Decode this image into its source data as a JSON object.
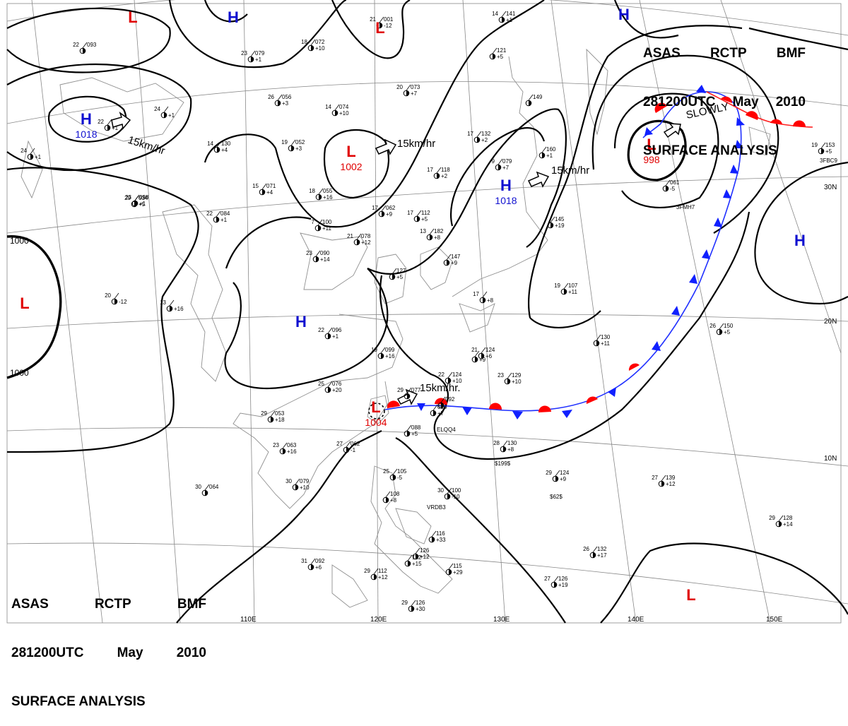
{
  "header": {
    "line1": [
      "ASAS",
      "RCTP",
      "BMF"
    ],
    "line2": [
      "281200UTC",
      "May",
      "2010"
    ],
    "line3": "SURFACE ANALYSIS"
  },
  "colors": {
    "high": "#1010d0",
    "low": "#e00000",
    "isobar": "#000000",
    "grid": "#888888",
    "coast": "#909090",
    "cold_front": "#0000ff",
    "warm_front": "#ff0000"
  },
  "grid_labels": {
    "lon": [
      "110E",
      "120E",
      "130E",
      "140E",
      "150E"
    ],
    "lat": [
      "30N",
      "20N",
      "10N"
    ]
  },
  "isobar_labels": [
    "1000",
    "1000"
  ],
  "pressure_centers": [
    {
      "type": "H",
      "value": "1018"
    },
    {
      "type": "H",
      "value": ""
    },
    {
      "type": "H",
      "value": ""
    },
    {
      "type": "H",
      "value": "1018"
    },
    {
      "type": "H",
      "value": ""
    },
    {
      "type": "H",
      "value": ""
    },
    {
      "type": "L",
      "value": "1002"
    },
    {
      "type": "L",
      "value": "998"
    },
    {
      "type": "L",
      "value": "1004"
    },
    {
      "type": "L",
      "value": ""
    },
    {
      "type": "L",
      "value": ""
    },
    {
      "type": "L",
      "value": ""
    },
    {
      "type": "L",
      "value": ""
    }
  ],
  "motion_labels": [
    "15km/hr",
    "15km/hr",
    "15km/hr",
    "15km/hr.",
    "SLOWLY"
  ],
  "stations": [
    {
      "t": "22",
      "p": "093",
      "d": ""
    },
    {
      "t": "24",
      "p": "",
      "d": "+1"
    },
    {
      "t": "23",
      "p": "079",
      "d": "+1"
    },
    {
      "t": "18",
      "p": "072",
      "d": "+10"
    },
    {
      "t": "21",
      "p": "001",
      "d": "-12"
    },
    {
      "t": "14",
      "p": "141",
      "d": "+1"
    },
    {
      "t": "26",
      "p": "056",
      "d": "+3"
    },
    {
      "t": "14",
      "p": "074",
      "d": "+10"
    },
    {
      "t": "20",
      "p": "073",
      "d": "+7"
    },
    {
      "t": "",
      "p": "121",
      "d": "+5"
    },
    {
      "t": "22",
      "p": "",
      "d": "+1"
    },
    {
      "t": "24",
      "p": "",
      "d": "+1"
    },
    {
      "t": "14",
      "p": "130",
      "d": "+4"
    },
    {
      "t": "19",
      "p": "052",
      "d": "+3"
    },
    {
      "t": "17",
      "p": "132",
      "d": "+2"
    },
    {
      "t": "",
      "p": "149",
      "d": ""
    },
    {
      "t": "23",
      "p": "098",
      "d": "+1"
    },
    {
      "t": "15",
      "p": "071",
      "d": "+4"
    },
    {
      "t": "18",
      "p": "055",
      "d": "+16"
    },
    {
      "t": "17",
      "p": "118",
      "d": "+2"
    },
    {
      "t": "9",
      "p": "079",
      "d": "+7"
    },
    {
      "t": "",
      "p": "160",
      "d": "+1"
    },
    {
      "t": "19",
      "p": "153",
      "d": "+5"
    },
    {
      "t": "29",
      "p": "034",
      "d": "+5"
    },
    {
      "t": "22",
      "p": "084",
      "d": "+1"
    },
    {
      "t": "17",
      "p": "062",
      "d": "+9"
    },
    {
      "t": "17",
      "p": "112",
      "d": "+5"
    },
    {
      "t": "",
      "p": "061",
      "d": "-5"
    },
    {
      "t": "7",
      "p": "100",
      "d": "+11"
    },
    {
      "t": "21",
      "p": "078",
      "d": "+12"
    },
    {
      "t": "13",
      "p": "182",
      "d": "+8"
    },
    {
      "t": "",
      "p": "145",
      "d": "+19"
    },
    {
      "t": "23",
      "p": "090",
      "d": "+14"
    },
    {
      "t": "",
      "p": "147",
      "d": "+9"
    },
    {
      "t": "",
      "p": "127",
      "d": "+5"
    },
    {
      "t": "19",
      "p": "107",
      "d": "+11"
    },
    {
      "t": "20",
      "p": "",
      "d": "-12"
    },
    {
      "t": "13",
      "p": "",
      "d": "+16"
    },
    {
      "t": "17",
      "p": "",
      "d": "+8"
    },
    {
      "t": "22",
      "p": "096",
      "d": "+1"
    },
    {
      "t": "",
      "p": "130",
      "d": "+11"
    },
    {
      "t": "26",
      "p": "150",
      "d": "+5"
    },
    {
      "t": "19",
      "p": "099",
      "d": "+16"
    },
    {
      "t": "21",
      "p": "124",
      "d": "+6"
    },
    {
      "t": "",
      "p": "",
      "d": "+9"
    },
    {
      "t": "25",
      "p": "076",
      "d": "+20"
    },
    {
      "t": "22",
      "p": "124",
      "d": "+10"
    },
    {
      "t": "23",
      "p": "129",
      "d": "+10"
    },
    {
      "t": "29",
      "p": "053",
      "d": "+18"
    },
    {
      "t": "29",
      "p": "077",
      "d": ""
    },
    {
      "t": "",
      "p": "092",
      "d": ""
    },
    {
      "t": "",
      "p": "090",
      "d": "+7"
    },
    {
      "t": "",
      "p": "088",
      "d": "+5"
    },
    {
      "t": "23",
      "p": "063",
      "d": "+16"
    },
    {
      "t": "27",
      "p": "062",
      "d": "-1"
    },
    {
      "t": "28",
      "p": "130",
      "d": "+8"
    },
    {
      "t": "25",
      "p": "105",
      "d": "-5"
    },
    {
      "t": "",
      "p": "108",
      "d": "+8"
    },
    {
      "t": "30",
      "p": "079",
      "d": "+10"
    },
    {
      "t": "30",
      "p": "064",
      "d": ""
    },
    {
      "t": "30",
      "p": "100",
      "d": "-10"
    },
    {
      "t": "29",
      "p": "124",
      "d": "+9"
    },
    {
      "t": "27",
      "p": "139",
      "d": "+12"
    },
    {
      "t": "",
      "p": "116",
      "d": "+33"
    },
    {
      "t": "29",
      "p": "128",
      "d": "+14"
    },
    {
      "t": "",
      "p": "126",
      "d": "+12"
    },
    {
      "t": "26",
      "p": "132",
      "d": "+17"
    },
    {
      "t": "31",
      "p": "092",
      "d": "+6"
    },
    {
      "t": "29",
      "p": "112",
      "d": "+12"
    },
    {
      "t": "",
      "p": "115",
      "d": "+29"
    },
    {
      "t": "",
      "p": "132",
      "d": "+15"
    },
    {
      "t": "27",
      "p": "126",
      "d": "+19"
    },
    {
      "t": "29",
      "p": "126",
      "d": "+30"
    }
  ],
  "station_codes": [
    "3FBC9",
    "3FMH7",
    "ELQQ4",
    "$199$",
    "VRDB3",
    "$62$"
  ]
}
